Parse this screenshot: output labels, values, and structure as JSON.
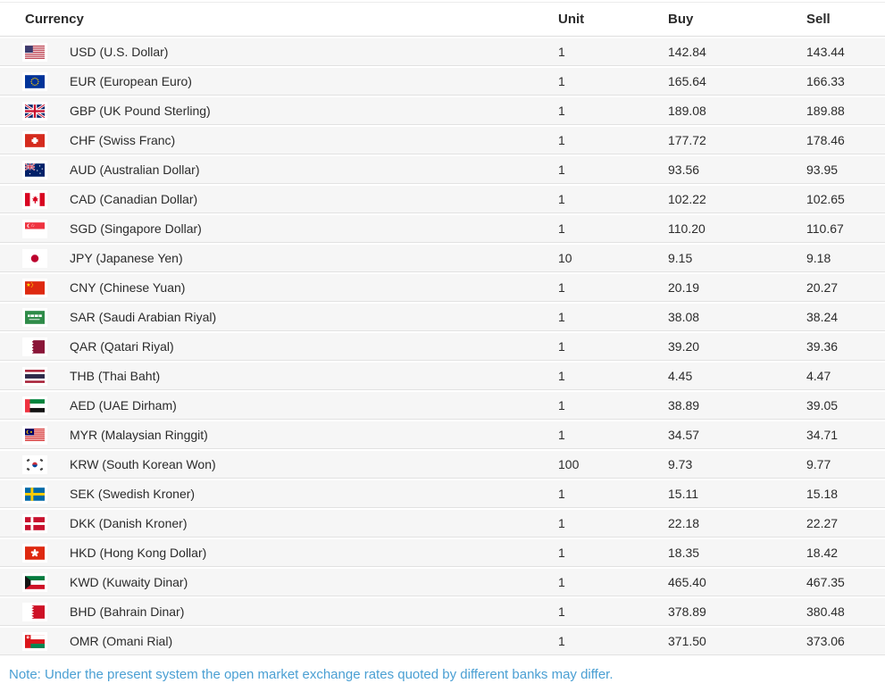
{
  "table": {
    "headers": {
      "currency": "Currency",
      "unit": "Unit",
      "buy": "Buy",
      "sell": "Sell"
    },
    "rows": [
      {
        "code": "USD",
        "flag_icon": "flag-usd-icon",
        "label": "USD (U.S. Dollar)",
        "unit": "1",
        "buy": "142.84",
        "sell": "143.44"
      },
      {
        "code": "EUR",
        "flag_icon": "flag-eur-icon",
        "label": "EUR (European Euro)",
        "unit": "1",
        "buy": "165.64",
        "sell": "166.33"
      },
      {
        "code": "GBP",
        "flag_icon": "flag-gbp-icon",
        "label": "GBP (UK Pound Sterling)",
        "unit": "1",
        "buy": "189.08",
        "sell": "189.88"
      },
      {
        "code": "CHF",
        "flag_icon": "flag-chf-icon",
        "label": "CHF (Swiss Franc)",
        "unit": "1",
        "buy": "177.72",
        "sell": "178.46"
      },
      {
        "code": "AUD",
        "flag_icon": "flag-aud-icon",
        "label": "AUD (Australian Dollar)",
        "unit": "1",
        "buy": "93.56",
        "sell": "93.95"
      },
      {
        "code": "CAD",
        "flag_icon": "flag-cad-icon",
        "label": "CAD (Canadian Dollar)",
        "unit": "1",
        "buy": "102.22",
        "sell": "102.65"
      },
      {
        "code": "SGD",
        "flag_icon": "flag-sgd-icon",
        "label": "SGD (Singapore Dollar)",
        "unit": "1",
        "buy": "110.20",
        "sell": "110.67"
      },
      {
        "code": "JPY",
        "flag_icon": "flag-jpy-icon",
        "label": "JPY (Japanese Yen)",
        "unit": "10",
        "buy": "9.15",
        "sell": "9.18"
      },
      {
        "code": "CNY",
        "flag_icon": "flag-cny-icon",
        "label": "CNY (Chinese Yuan)",
        "unit": "1",
        "buy": "20.19",
        "sell": "20.27"
      },
      {
        "code": "SAR",
        "flag_icon": "flag-sar-icon",
        "label": "SAR (Saudi Arabian Riyal)",
        "unit": "1",
        "buy": "38.08",
        "sell": "38.24"
      },
      {
        "code": "QAR",
        "flag_icon": "flag-qar-icon",
        "label": "QAR (Qatari Riyal)",
        "unit": "1",
        "buy": "39.20",
        "sell": "39.36"
      },
      {
        "code": "THB",
        "flag_icon": "flag-thb-icon",
        "label": "THB (Thai Baht)",
        "unit": "1",
        "buy": "4.45",
        "sell": "4.47"
      },
      {
        "code": "AED",
        "flag_icon": "flag-aed-icon",
        "label": "AED (UAE Dirham)",
        "unit": "1",
        "buy": "38.89",
        "sell": "39.05"
      },
      {
        "code": "MYR",
        "flag_icon": "flag-myr-icon",
        "label": "MYR (Malaysian Ringgit)",
        "unit": "1",
        "buy": "34.57",
        "sell": "34.71"
      },
      {
        "code": "KRW",
        "flag_icon": "flag-krw-icon",
        "label": "KRW (South Korean Won)",
        "unit": "100",
        "buy": "9.73",
        "sell": "9.77"
      },
      {
        "code": "SEK",
        "flag_icon": "flag-sek-icon",
        "label": "SEK (Swedish Kroner)",
        "unit": "1",
        "buy": "15.11",
        "sell": "15.18"
      },
      {
        "code": "DKK",
        "flag_icon": "flag-dkk-icon",
        "label": "DKK (Danish Kroner)",
        "unit": "1",
        "buy": "22.18",
        "sell": "22.27"
      },
      {
        "code": "HKD",
        "flag_icon": "flag-hkd-icon",
        "label": "HKD (Hong Kong Dollar)",
        "unit": "1",
        "buy": "18.35",
        "sell": "18.42"
      },
      {
        "code": "KWD",
        "flag_icon": "flag-kwd-icon",
        "label": "KWD (Kuwaity Dinar)",
        "unit": "1",
        "buy": "465.40",
        "sell": "467.35"
      },
      {
        "code": "BHD",
        "flag_icon": "flag-bhd-icon",
        "label": "BHD (Bahrain Dinar)",
        "unit": "1",
        "buy": "378.89",
        "sell": "380.48"
      },
      {
        "code": "OMR",
        "flag_icon": "flag-omr-icon",
        "label": "OMR (Omani Rial)",
        "unit": "1",
        "buy": "371.50",
        "sell": "373.06"
      }
    ]
  },
  "note": "Note: Under the present system the open market exchange rates quoted by different banks may differ.",
  "colors": {
    "row_background": "#f6f6f6",
    "divider": "#e2e2e2",
    "header_text": "#2b2b2b",
    "body_text": "#2b2b2b",
    "note_text": "#4a9fd3"
  }
}
